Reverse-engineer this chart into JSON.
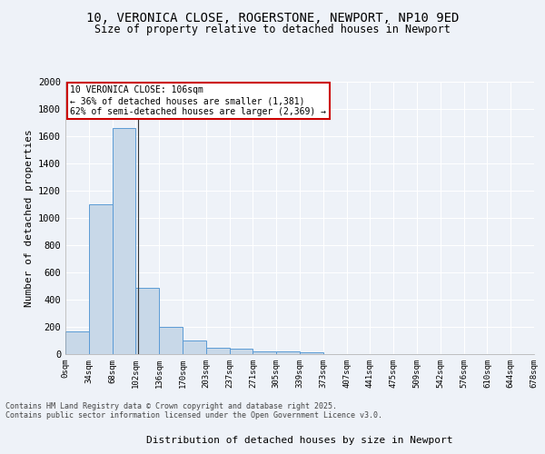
{
  "title_line1": "10, VERONICA CLOSE, ROGERSTONE, NEWPORT, NP10 9ED",
  "title_line2": "Size of property relative to detached houses in Newport",
  "xlabel": "Distribution of detached houses by size in Newport",
  "ylabel": "Number of detached properties",
  "bar_values": [
    170,
    1100,
    1660,
    490,
    200,
    100,
    45,
    40,
    22,
    20,
    12,
    0,
    0,
    0,
    0,
    0,
    0,
    0,
    0,
    0
  ],
  "bar_labels": [
    "0sqm",
    "34sqm",
    "68sqm",
    "102sqm",
    "136sqm",
    "170sqm",
    "203sqm",
    "237sqm",
    "271sqm",
    "305sqm",
    "339sqm",
    "373sqm",
    "407sqm",
    "441sqm",
    "475sqm",
    "509sqm",
    "542sqm",
    "576sqm",
    "610sqm",
    "644sqm",
    "678sqm"
  ],
  "bar_color": "#c8d8e8",
  "bar_edge_color": "#5b9bd5",
  "background_color": "#eef2f8",
  "grid_color": "#ffffff",
  "ylim": [
    0,
    2000
  ],
  "yticks": [
    0,
    200,
    400,
    600,
    800,
    1000,
    1200,
    1400,
    1600,
    1800,
    2000
  ],
  "property_size": 106,
  "annotation_title": "10 VERONICA CLOSE: 106sqm",
  "annotation_line2": "← 36% of detached houses are smaller (1,381)",
  "annotation_line3": "62% of semi-detached houses are larger (2,369) →",
  "annotation_box_color": "#ffffff",
  "annotation_box_edge_color": "#cc0000",
  "vline_color": "#333333",
  "footer_line1": "Contains HM Land Registry data © Crown copyright and database right 2025.",
  "footer_line2": "Contains public sector information licensed under the Open Government Licence v3.0."
}
